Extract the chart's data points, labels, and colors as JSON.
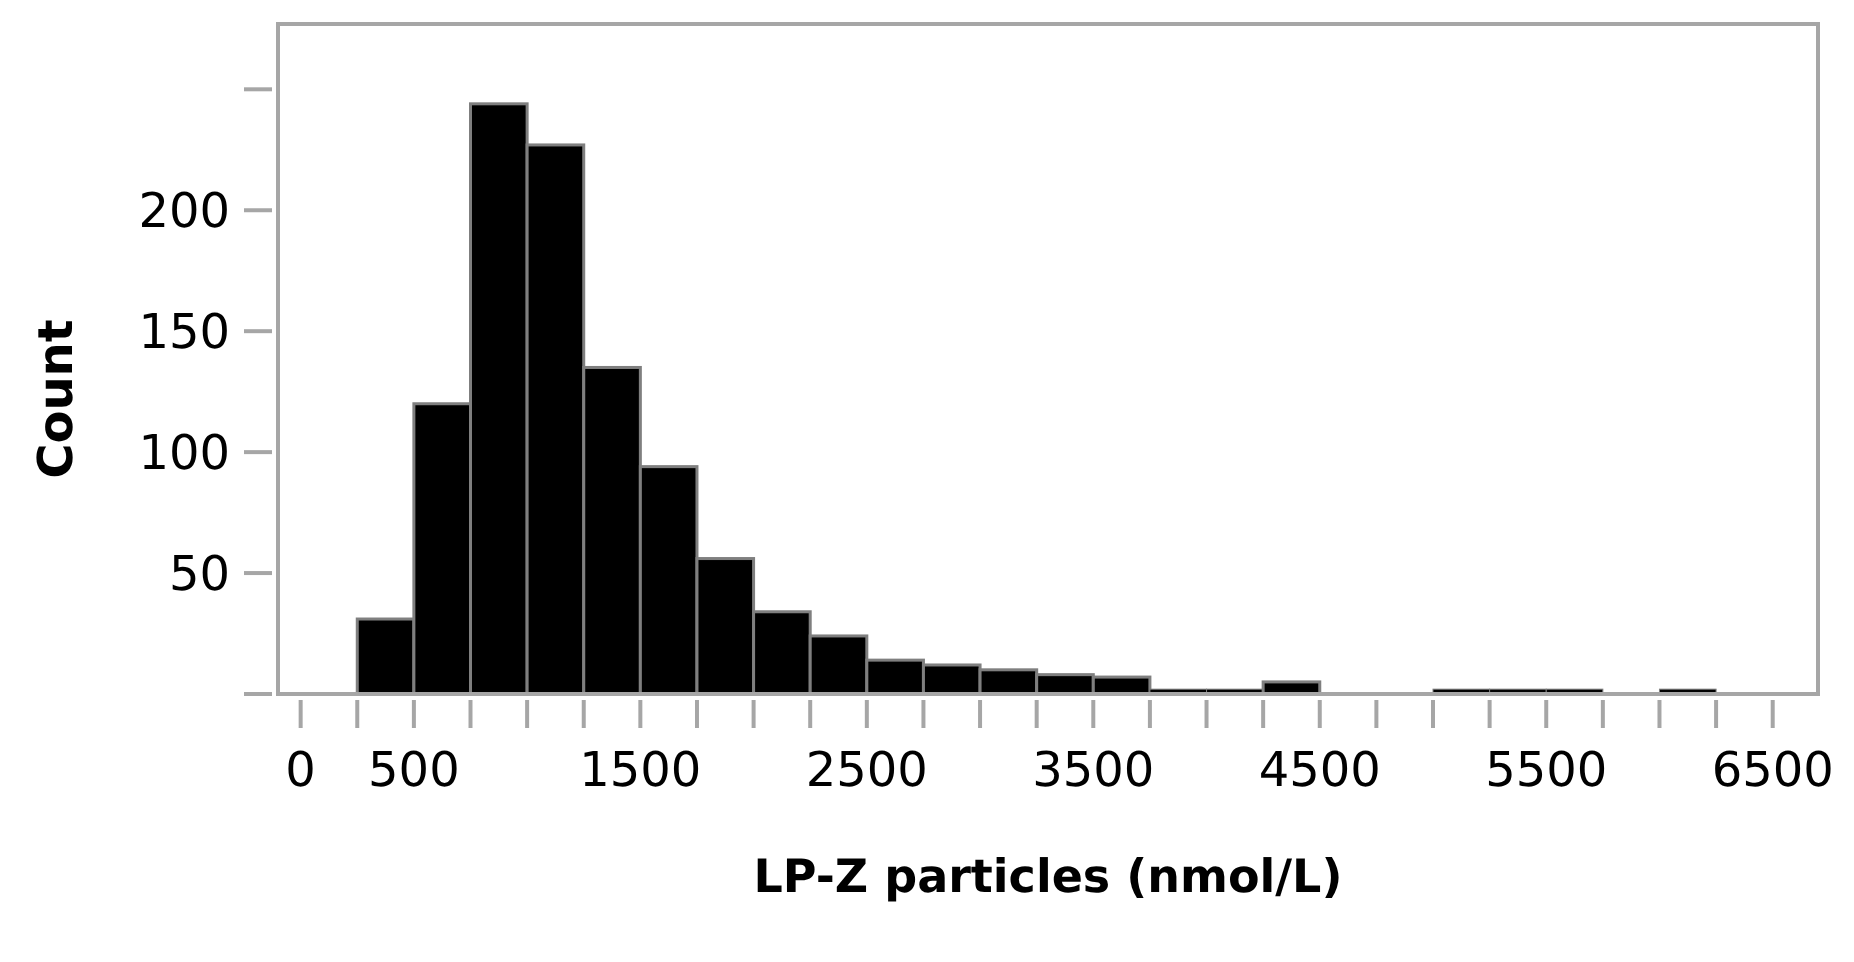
{
  "chart_data": {
    "type": "histogram",
    "xlabel": "LP-Z particles (nmol/L)",
    "ylabel": "Count",
    "bins": [
      250,
      500,
      750,
      1000,
      1250,
      1500,
      1750,
      2000,
      2250,
      2500,
      2750,
      3000,
      3250,
      3500,
      3750,
      4000,
      4250,
      4500,
      4750,
      5000,
      5250,
      5500,
      5750,
      6000,
      6250
    ],
    "values": [
      31,
      120,
      244,
      227,
      135,
      94,
      56,
      34,
      24,
      14,
      12,
      10,
      8,
      7,
      2,
      2,
      5,
      0,
      0,
      2,
      2,
      2,
      0,
      2
    ],
    "color": "#000000",
    "xlim": [
      -100,
      6700
    ],
    "xticks": [
      0,
      {
        "value": 250,
        "label": null
      },
      500,
      {
        "value": 750,
        "label": null
      },
      {
        "value": 1000,
        "label": null
      },
      {
        "value": 1250,
        "label": null
      },
      1500,
      {
        "value": 1750,
        "label": null
      },
      {
        "value": 2000,
        "label": null
      },
      {
        "value": 2250,
        "label": null
      },
      2500,
      {
        "value": 2750,
        "label": null
      },
      {
        "value": 3000,
        "label": null
      },
      {
        "value": 3250,
        "label": null
      },
      3500,
      {
        "value": 3750,
        "label": null
      },
      {
        "value": 4000,
        "label": null
      },
      {
        "value": 4250,
        "label": null
      },
      4500,
      {
        "value": 4750,
        "label": null
      },
      {
        "value": 5000,
        "label": null
      },
      {
        "value": 5250,
        "label": null
      },
      5500,
      {
        "value": 5750,
        "label": null
      },
      {
        "value": 6000,
        "label": null
      },
      {
        "value": 6250,
        "label": null
      },
      6500
    ],
    "ylim": [
      0,
      277
    ],
    "yticks": [
      {
        "value": 0,
        "label": null
      },
      50,
      100,
      150,
      200,
      {
        "value": 250,
        "label": null
      }
    ]
  }
}
